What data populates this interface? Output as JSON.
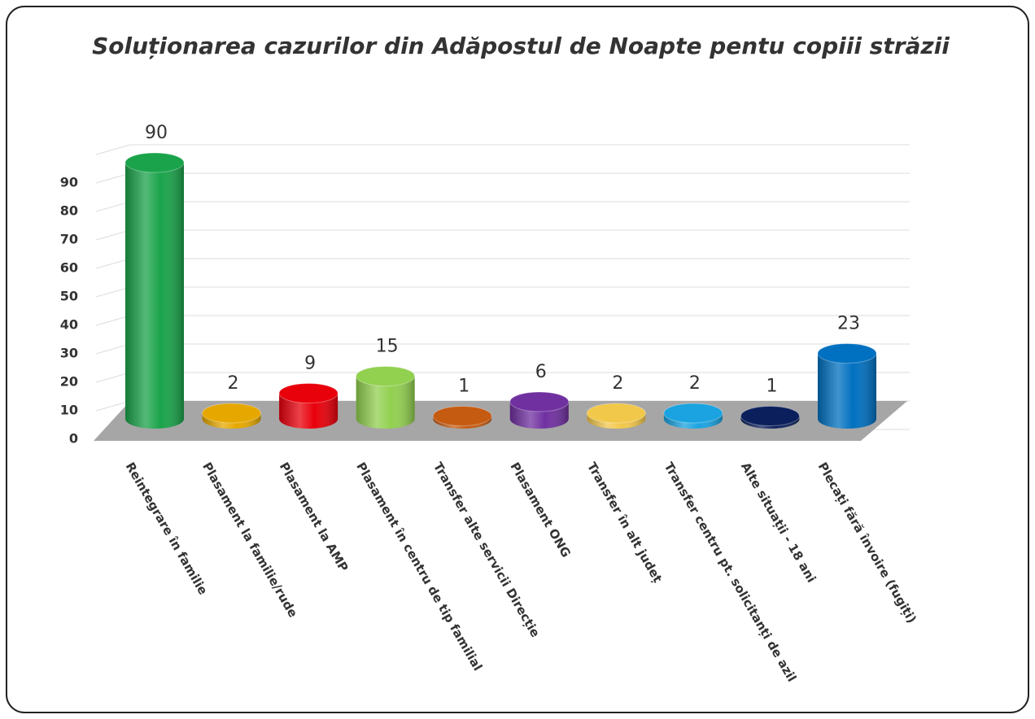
{
  "chart_data": {
    "type": "bar3d",
    "title": "Soluționarea cazurilor din Adăpostul de Noapte pentu copiii străzii",
    "categories": [
      "Reintegrare în familie",
      "Plasament la familie/rude",
      "Plasament la AMP",
      "Plasament în centru de tip familial",
      "Transfer alte servicii Direcție",
      "Plasament ONG",
      "Transfer în alt județ",
      "Transfer centru pt. solicitanți de azil",
      "Alte situații - 18 ani",
      "Plecați fără învoire (fugiți)"
    ],
    "values": [
      90,
      2,
      9,
      15,
      1,
      6,
      2,
      2,
      1,
      23
    ],
    "colors": [
      "#1aa34a",
      "#e6a800",
      "#e8000b",
      "#92d050",
      "#c55a11",
      "#7030a0",
      "#f2c84b",
      "#1aa3e0",
      "#0b1f5c",
      "#0070c0"
    ],
    "ylim": [
      0,
      100
    ],
    "yticks": [
      0,
      10,
      20,
      30,
      40,
      50,
      60,
      70,
      80,
      90
    ],
    "grid": true
  }
}
